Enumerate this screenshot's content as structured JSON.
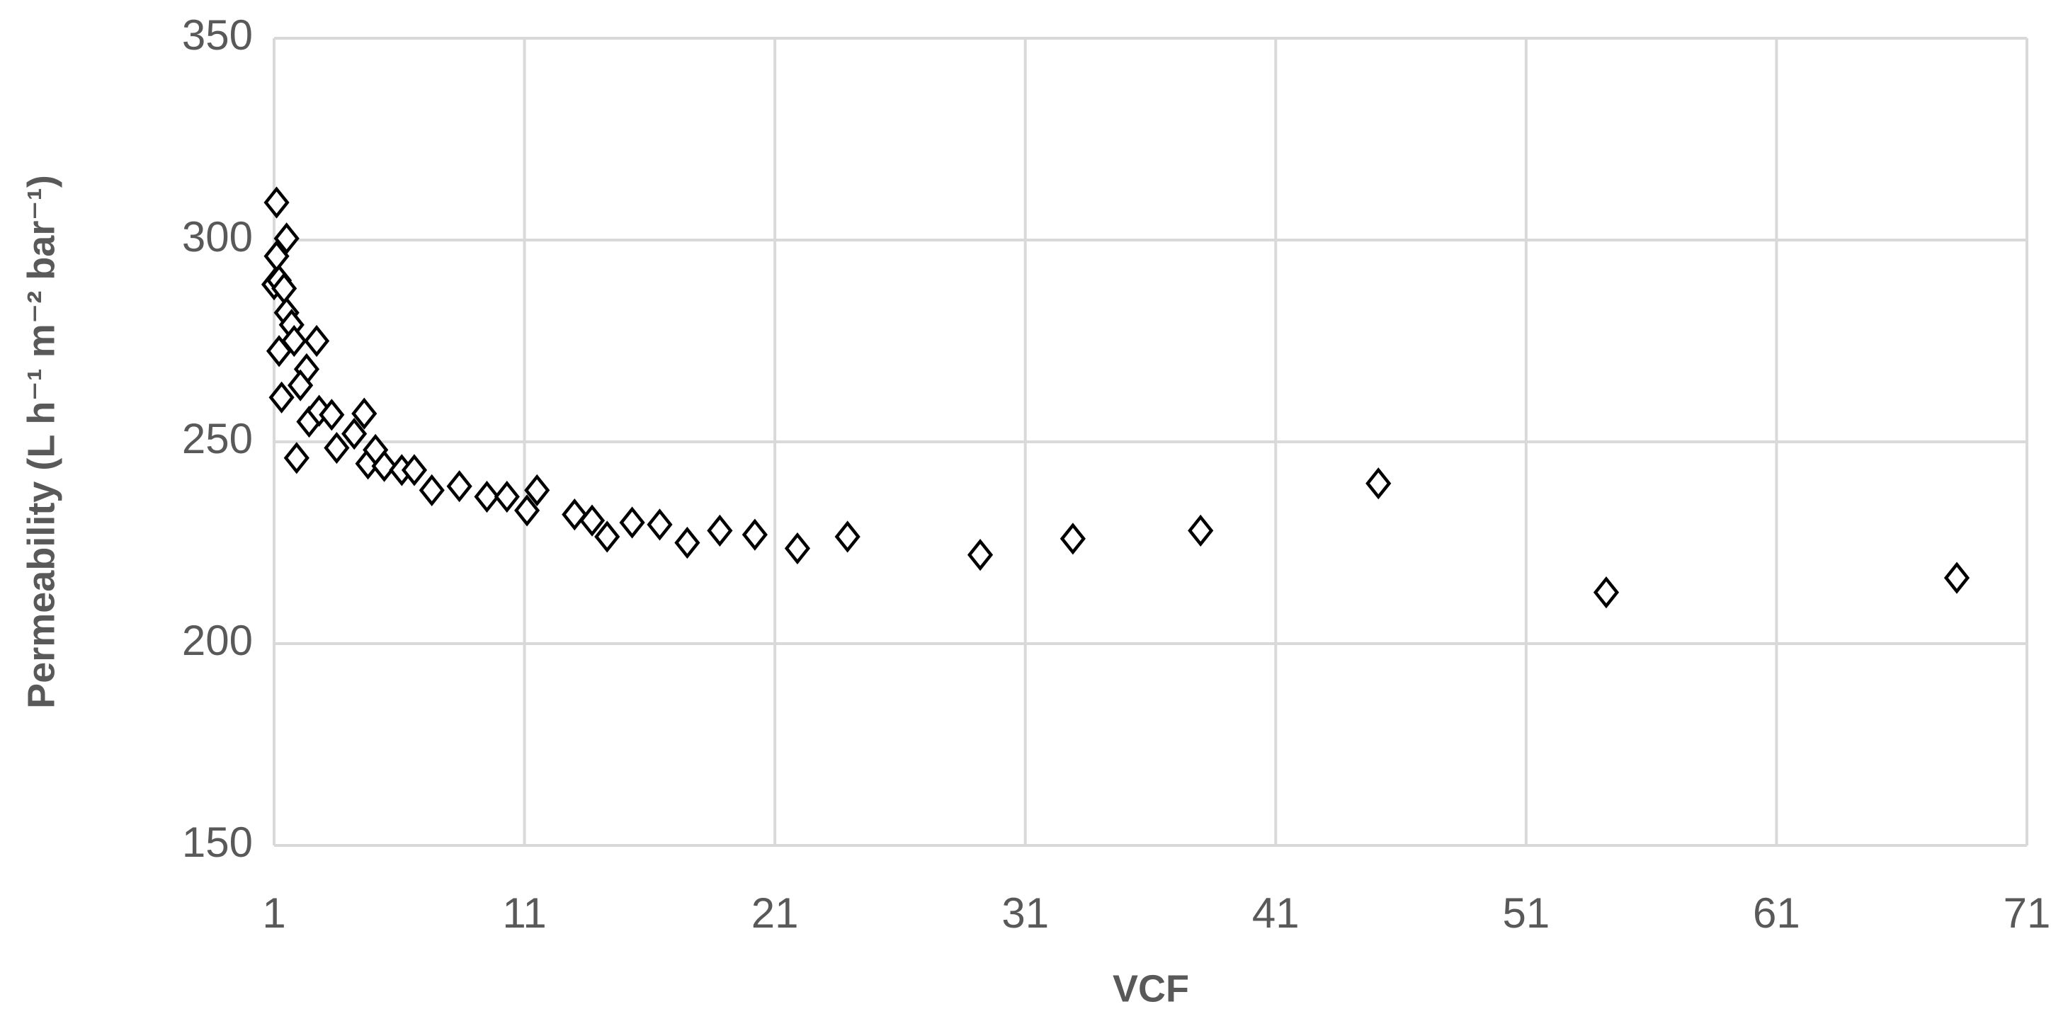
{
  "chart_data": {
    "type": "scatter",
    "x_label": "VCF",
    "y_label": "Permeability (L h⁻¹ m⁻² bar⁻¹)",
    "xlim": [
      1,
      71
    ],
    "xticks": [
      1,
      11,
      21,
      31,
      41,
      51,
      61,
      71
    ],
    "ylim": [
      150,
      350
    ],
    "yticks": [
      150,
      200,
      250,
      300,
      350
    ],
    "grid": true,
    "marker": "diamond",
    "color": "#000000",
    "x": [
      1.1,
      1.1,
      1.5,
      1.0,
      1.2,
      1.4,
      1.5,
      1.7,
      1.8,
      1.2,
      2.7,
      2.3,
      2.05,
      1.3,
      1.9,
      2.4,
      2.8,
      3.3,
      3.5,
      4.2,
      4.6,
      4.75,
      5.05,
      5.4,
      6.1,
      6.6,
      7.3,
      8.4,
      9.5,
      10.3,
      11.1,
      11.5,
      13.0,
      13.7,
      14.3,
      15.3,
      16.4,
      17.5,
      18.8,
      20.2,
      21.9,
      23.9,
      29.2,
      32.9,
      38.0,
      45.1,
      54.2,
      68.2
    ],
    "values": [
      309.3,
      296,
      300.4,
      289,
      290,
      288,
      282,
      279,
      275,
      272.5,
      275,
      268,
      264,
      261,
      246,
      255,
      257.7,
      256.7,
      248.5,
      252,
      257,
      244.6,
      248,
      244,
      243,
      243,
      238,
      239,
      236.4,
      236.4,
      233,
      238,
      232,
      230.5,
      226.5,
      230,
      229.5,
      225,
      228,
      227,
      223.6,
      226.5,
      222,
      226,
      228,
      239.7,
      212.7,
      216.3
    ]
  }
}
